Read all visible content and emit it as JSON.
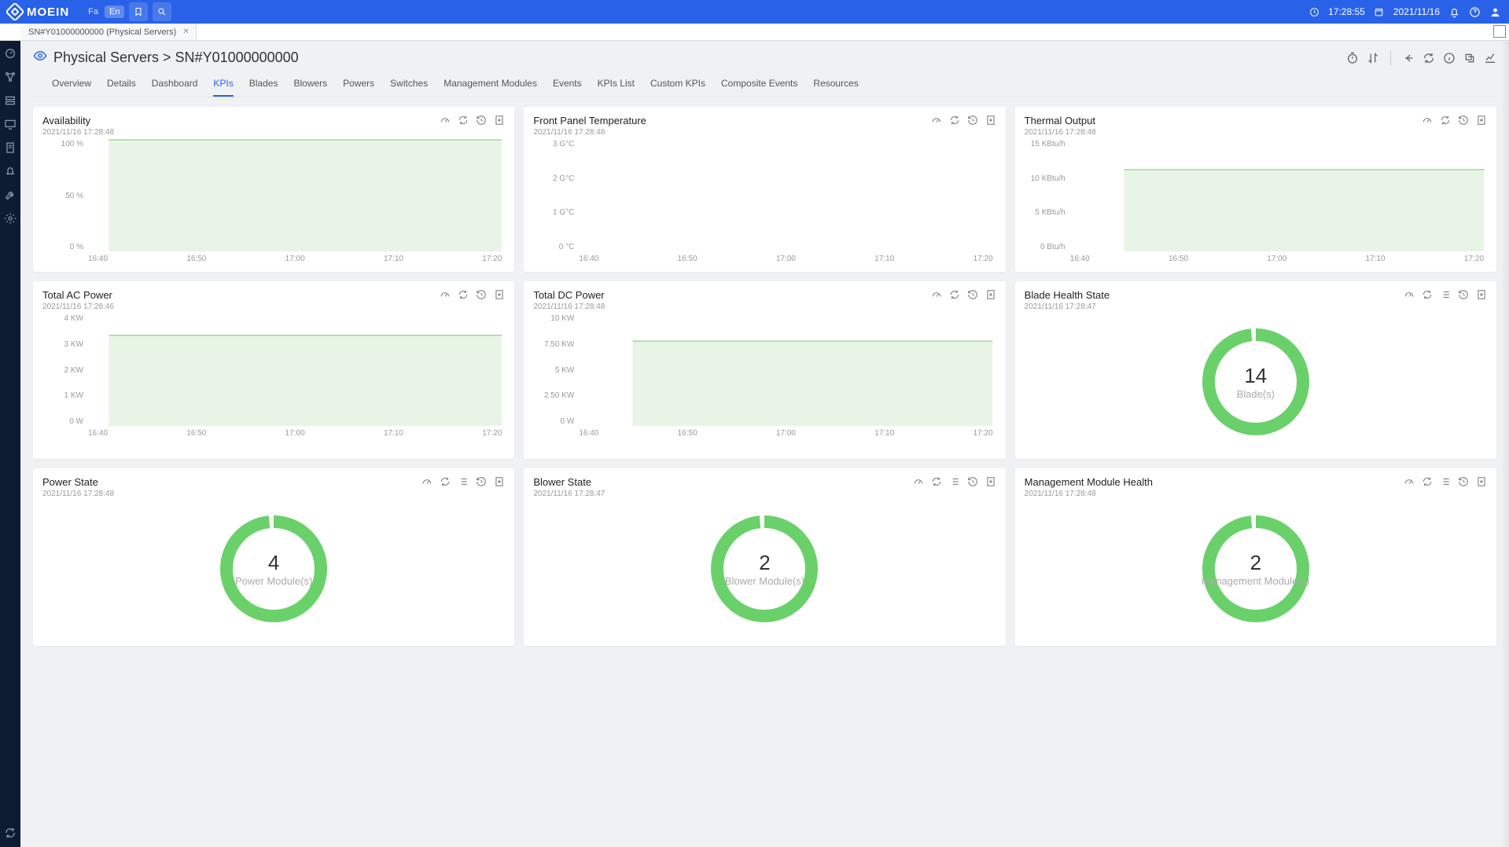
{
  "brand": "MOEIN",
  "lang": {
    "fa": "Fa",
    "en": "En",
    "active": "en"
  },
  "clock": "17:28:55",
  "date": "2021/11/16",
  "doc_tab": "SN#Y01000000000 (Physical Servers)",
  "breadcrumb": "Physical Servers > SN#Y01000000000",
  "subtabs": [
    "Overview",
    "Details",
    "Dashboard",
    "KPIs",
    "Blades",
    "Blowers",
    "Powers",
    "Switches",
    "Management Modules",
    "Events",
    "KPIs List",
    "Custom KPIs",
    "Composite Events",
    "Resources"
  ],
  "active_subtab": "KPIs",
  "colors": {
    "line": "#7bc96f",
    "fill_top": "rgba(123,201,111,0.35)",
    "fill_bottom": "rgba(123,201,111,0.02)",
    "donut": "#6ad16a",
    "donut_gap": "#ffffff"
  },
  "x_ticks": [
    "16:40",
    "16:50",
    "17:00",
    "17:10",
    "17:20"
  ],
  "cards": {
    "availability": {
      "title": "Availability",
      "ts": "2021/11/16   17:28:48",
      "type": "area",
      "icons": [
        "gauge",
        "refresh",
        "history",
        "download"
      ],
      "y_ticks": [
        "100 %",
        "50 %",
        "0 %"
      ],
      "y_range": [
        0,
        100
      ],
      "x_start": 0.05,
      "value": 100
    },
    "front_temp": {
      "title": "Front Panel Temperature",
      "ts": "2021/11/16   17:28:48",
      "type": "area-empty",
      "icons": [
        "gauge",
        "refresh",
        "history",
        "download"
      ],
      "y_ticks": [
        "3 G°C",
        "2 G°C",
        "1 G°C",
        "0 °C"
      ]
    },
    "thermal": {
      "title": "Thermal Output",
      "ts": "2021/11/16   17:28:48",
      "type": "area",
      "icons": [
        "gauge",
        "refresh",
        "history",
        "download"
      ],
      "y_ticks": [
        "15 KBtu/h",
        "10 KBtu/h",
        "5 KBtu/h",
        "0 Btu/h"
      ],
      "y_range": [
        0,
        15
      ],
      "x_start": 0.13,
      "value": 11
    },
    "ac_power": {
      "title": "Total AC Power",
      "ts": "2021/11/16   17:28:46",
      "type": "area",
      "icons": [
        "gauge",
        "refresh",
        "history",
        "download"
      ],
      "y_ticks": [
        "4 KW",
        "3 KW",
        "2 KW",
        "1 KW",
        "0 W"
      ],
      "y_range": [
        0,
        4
      ],
      "x_start": 0.05,
      "value": 3.25
    },
    "dc_power": {
      "title": "Total DC Power",
      "ts": "2021/11/16   17:28:48",
      "type": "area",
      "icons": [
        "gauge",
        "refresh",
        "history",
        "download"
      ],
      "y_ticks": [
        "10 KW",
        "7.50 KW",
        "5 KW",
        "2.50 KW",
        "0 W"
      ],
      "y_range": [
        0,
        10
      ],
      "x_start": 0.13,
      "value": 7.6
    },
    "blade_health": {
      "title": "Blade Health State",
      "ts": "2021/11/16   17:28:47",
      "type": "donut",
      "icons": [
        "gauge",
        "refresh",
        "list",
        "history",
        "download"
      ],
      "value": "14",
      "label": "Blade(s)"
    },
    "power_state": {
      "title": "Power State",
      "ts": "2021/11/16   17:28:48",
      "type": "donut",
      "icons": [
        "gauge",
        "refresh",
        "list",
        "history",
        "download"
      ],
      "value": "4",
      "label": "Power Module(s)"
    },
    "blower_state": {
      "title": "Blower State",
      "ts": "2021/11/16   17:28:47",
      "type": "donut",
      "icons": [
        "gauge",
        "refresh",
        "list",
        "history",
        "download"
      ],
      "value": "2",
      "label": "Blower Module(s)"
    },
    "mm_health": {
      "title": "Management Module Health",
      "ts": "2021/11/16   17:28:48",
      "type": "donut",
      "icons": [
        "gauge",
        "refresh",
        "list",
        "history",
        "download"
      ],
      "value": "2",
      "label": "Management Module(s)"
    }
  }
}
